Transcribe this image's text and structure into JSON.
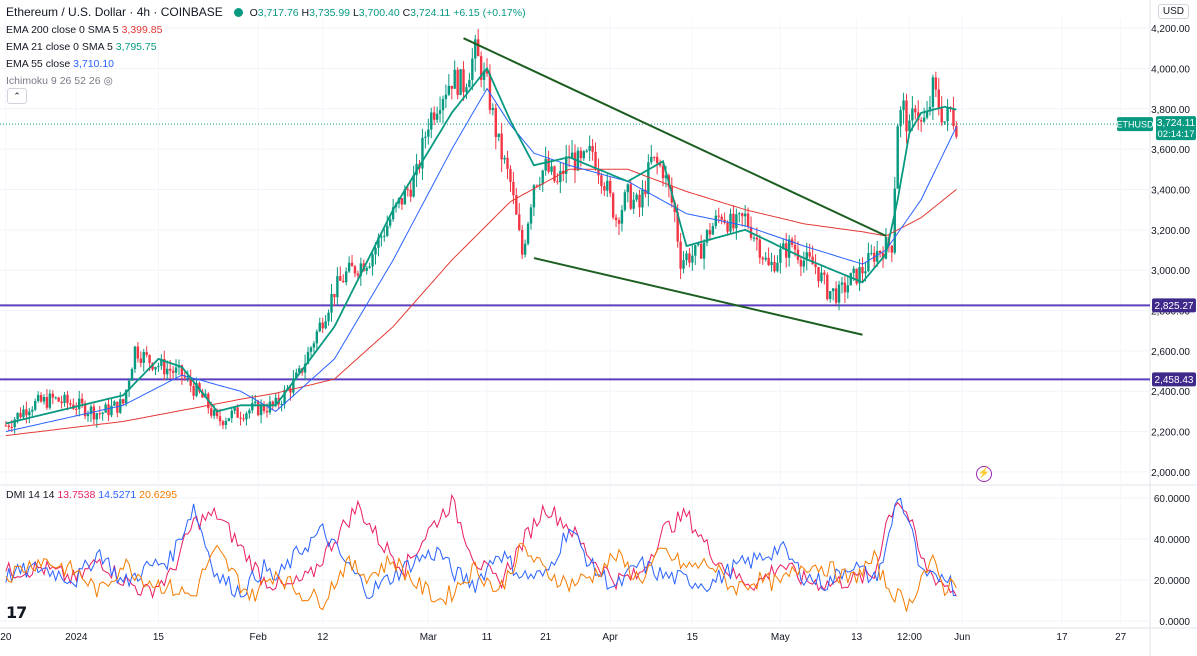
{
  "header": {
    "symbol_title": "Ethereum / U.S. Dollar · 4h · COINBASE",
    "ohlc": [
      {
        "key": "O",
        "value": "3,717.76"
      },
      {
        "key": "H",
        "value": "3,735.99"
      },
      {
        "key": "L",
        "value": "3,700.40"
      },
      {
        "key": "C",
        "value": "3,724.11"
      }
    ],
    "change": "+6.15 (+0.17%)",
    "currency_button": "USD",
    "collapse_glyph": "⌃"
  },
  "indicators": [
    {
      "label": "EMA 200 close 0 SMA 5",
      "value": "3,399.85",
      "color": "#e53935"
    },
    {
      "label": "EMA 21 close 0 SMA 5",
      "value": "3,795.75",
      "color": "#089981"
    },
    {
      "label": "EMA 55 close",
      "value": "3,710.10",
      "color": "#2962ff"
    },
    {
      "label": "Ichimoku 9 26 52 26",
      "value": "",
      "color": "#787b86"
    }
  ],
  "dmi": {
    "label": "DMI 14 14",
    "values": [
      {
        "value": "13.7538",
        "color": "#e91e63"
      },
      {
        "value": "14.5271",
        "color": "#2962ff"
      },
      {
        "value": "20.6295",
        "color": "#f57c00"
      }
    ]
  },
  "price_tag": {
    "symbol": "ETHUSD",
    "price": "3,724.11",
    "countdown": "02:14:17"
  },
  "brand": {
    "logo_text": "17"
  },
  "chart_data": {
    "type": "candlestick",
    "title": "Ethereum / U.S. Dollar · 4h · COINBASE",
    "ylim": [
      1950,
      4250
    ],
    "y_ticks": [
      "4,200.00",
      "4,000.00",
      "3,800.00",
      "3,600.00",
      "3,400.00",
      "3,200.00",
      "3,000.00",
      "2,800.00",
      "2,600.00",
      "2,400.00",
      "2,200.00",
      "2,000.00"
    ],
    "y_tick_values": [
      4200,
      4000,
      3800,
      3600,
      3400,
      3200,
      3000,
      2800,
      2600,
      2400,
      2200,
      2000
    ],
    "x_ticks": [
      {
        "label": "20",
        "t": 0
      },
      {
        "label": "2024",
        "t": 12
      },
      {
        "label": "15",
        "t": 26
      },
      {
        "label": "Feb",
        "t": 43
      },
      {
        "label": "12",
        "t": 54
      },
      {
        "label": "Mar",
        "t": 72
      },
      {
        "label": "11",
        "t": 82
      },
      {
        "label": "21",
        "t": 92
      },
      {
        "label": "Apr",
        "t": 103
      },
      {
        "label": "15",
        "t": 117
      },
      {
        "label": "May",
        "t": 132
      },
      {
        "label": "13",
        "t": 145
      },
      {
        "label": "12:00",
        "t": 154
      },
      {
        "label": "Jun",
        "t": 163
      },
      {
        "label": "17",
        "t": 180
      },
      {
        "label": "27",
        "t": 190
      }
    ],
    "price_path_t": [
      0,
      4,
      8,
      12,
      16,
      20,
      22,
      24,
      26,
      30,
      34,
      36,
      38,
      42,
      46,
      50,
      54,
      56,
      58,
      62,
      66,
      70,
      72,
      74,
      76,
      78,
      80,
      82,
      84,
      86,
      88,
      90,
      92,
      94,
      96,
      98,
      100,
      102,
      104,
      106,
      108,
      110,
      112,
      114,
      115,
      116,
      118,
      120,
      122,
      124,
      126,
      128,
      130,
      132,
      134,
      136,
      138,
      140,
      142,
      144,
      146,
      148,
      150,
      151,
      152,
      153,
      154,
      155,
      156,
      157,
      158,
      159,
      160,
      161,
      162
    ],
    "price_path_v": [
      2230,
      2330,
      2360,
      2330,
      2290,
      2340,
      2610,
      2560,
      2530,
      2480,
      2350,
      2250,
      2280,
      2310,
      2330,
      2480,
      2760,
      2900,
      2980,
      3060,
      3280,
      3470,
      3740,
      3860,
      3950,
      3920,
      4080,
      3910,
      3620,
      3430,
      3080,
      3440,
      3510,
      3420,
      3570,
      3520,
      3590,
      3440,
      3260,
      3370,
      3310,
      3540,
      3500,
      3280,
      3050,
      3070,
      3080,
      3200,
      3280,
      3210,
      3260,
      3150,
      3010,
      3080,
      3130,
      3050,
      3020,
      2900,
      2880,
      2950,
      3000,
      3080,
      3120,
      3130,
      3740,
      3800,
      3680,
      3830,
      3720,
      3750,
      3900,
      3820,
      3740,
      3790,
      3724
    ],
    "series": [
      {
        "name": "EMA 200",
        "t": [
          0,
          20,
          40,
          46,
          56,
          66,
          76,
          86,
          96,
          106,
          116,
          126,
          136,
          146,
          150,
          156,
          162
        ],
        "values": [
          2180,
          2250,
          2360,
          2390,
          2460,
          2720,
          3050,
          3340,
          3500,
          3500,
          3390,
          3300,
          3230,
          3190,
          3170,
          3260,
          3400
        ]
      },
      {
        "name": "EMA 55",
        "t": [
          0,
          20,
          30,
          40,
          46,
          56,
          66,
          76,
          82,
          86,
          90,
          96,
          106,
          116,
          126,
          136,
          146,
          150,
          156,
          162
        ],
        "values": [
          2200,
          2330,
          2480,
          2400,
          2300,
          2560,
          3050,
          3600,
          3900,
          3720,
          3580,
          3520,
          3440,
          3280,
          3220,
          3120,
          3030,
          3100,
          3350,
          3710
        ]
      },
      {
        "name": "EMA 21",
        "t": [
          0,
          20,
          26,
          30,
          36,
          40,
          46,
          56,
          66,
          76,
          82,
          86,
          90,
          96,
          106,
          112,
          116,
          126,
          136,
          146,
          150,
          152,
          154,
          156,
          160,
          162
        ],
        "values": [
          2240,
          2380,
          2560,
          2520,
          2300,
          2330,
          2330,
          2720,
          3300,
          3780,
          4000,
          3740,
          3520,
          3560,
          3440,
          3540,
          3120,
          3200,
          3060,
          2940,
          3080,
          3350,
          3680,
          3780,
          3810,
          3796
        ]
      }
    ],
    "trendlines": [
      {
        "name": "upper-descending",
        "t": [
          78,
          150
        ],
        "values": [
          4150,
          3170
        ]
      },
      {
        "name": "lower-descending",
        "t": [
          90,
          146
        ],
        "values": [
          3060,
          2680
        ]
      }
    ],
    "horizontal_levels": [
      {
        "label": "2,825.27",
        "value": 2825.27
      },
      {
        "label": "2,458.43",
        "value": 2458.43
      }
    ],
    "last_price": 3724.11,
    "dmi_panel": {
      "ylim": [
        -2,
        64
      ],
      "y_ticks": [
        "60.0000",
        "40.0000",
        "20.0000",
        "0.0000"
      ],
      "y_tick_values": [
        60,
        40,
        20,
        0
      ],
      "plus_di_t": [
        0,
        6,
        12,
        16,
        20,
        24,
        28,
        32,
        34,
        36,
        40,
        44,
        46,
        50,
        54,
        58,
        62,
        66,
        70,
        74,
        76,
        80,
        84,
        88,
        92,
        96,
        100,
        104,
        108,
        112,
        116,
        120,
        124,
        128,
        132,
        136,
        140,
        144,
        148,
        150,
        152,
        154,
        156,
        158,
        160,
        162
      ],
      "plus_di": [
        22,
        26,
        20,
        34,
        18,
        26,
        30,
        56,
        38,
        22,
        14,
        26,
        20,
        34,
        44,
        28,
        14,
        22,
        30,
        34,
        24,
        18,
        34,
        22,
        22,
        46,
        26,
        16,
        28,
        22,
        20,
        18,
        26,
        30,
        36,
        22,
        18,
        28,
        20,
        34,
        62,
        48,
        22,
        20,
        24,
        14
      ],
      "minus_di_t": [
        0,
        6,
        12,
        16,
        20,
        24,
        28,
        32,
        34,
        36,
        40,
        42,
        46,
        50,
        54,
        58,
        62,
        66,
        70,
        74,
        76,
        80,
        84,
        88,
        92,
        96,
        100,
        104,
        108,
        112,
        116,
        120,
        124,
        128,
        132,
        136,
        140,
        144,
        148,
        150,
        152,
        154,
        156,
        158,
        160,
        162
      ],
      "minus_di": [
        22,
        30,
        24,
        14,
        28,
        20,
        16,
        12,
        26,
        34,
        18,
        12,
        24,
        14,
        10,
        28,
        22,
        30,
        18,
        10,
        14,
        26,
        14,
        36,
        24,
        18,
        22,
        32,
        20,
        34,
        26,
        28,
        16,
        20,
        18,
        28,
        26,
        20,
        30,
        18,
        12,
        8,
        22,
        28,
        16,
        20
      ],
      "adx_t": [
        0,
        6,
        12,
        16,
        20,
        24,
        28,
        32,
        36,
        40,
        44,
        48,
        52,
        56,
        60,
        64,
        68,
        72,
        76,
        80,
        84,
        88,
        92,
        96,
        100,
        104,
        108,
        112,
        116,
        120,
        124,
        128,
        132,
        136,
        140,
        144,
        148,
        150,
        152,
        154,
        156,
        158,
        160,
        162
      ],
      "adx": [
        24,
        26,
        20,
        30,
        20,
        14,
        22,
        48,
        52,
        36,
        20,
        16,
        22,
        40,
        56,
        38,
        26,
        44,
        58,
        30,
        18,
        38,
        56,
        46,
        30,
        20,
        22,
        44,
        52,
        34,
        22,
        18,
        28,
        20,
        18,
        20,
        22,
        48,
        60,
        50,
        30,
        22,
        18,
        14
      ]
    }
  }
}
